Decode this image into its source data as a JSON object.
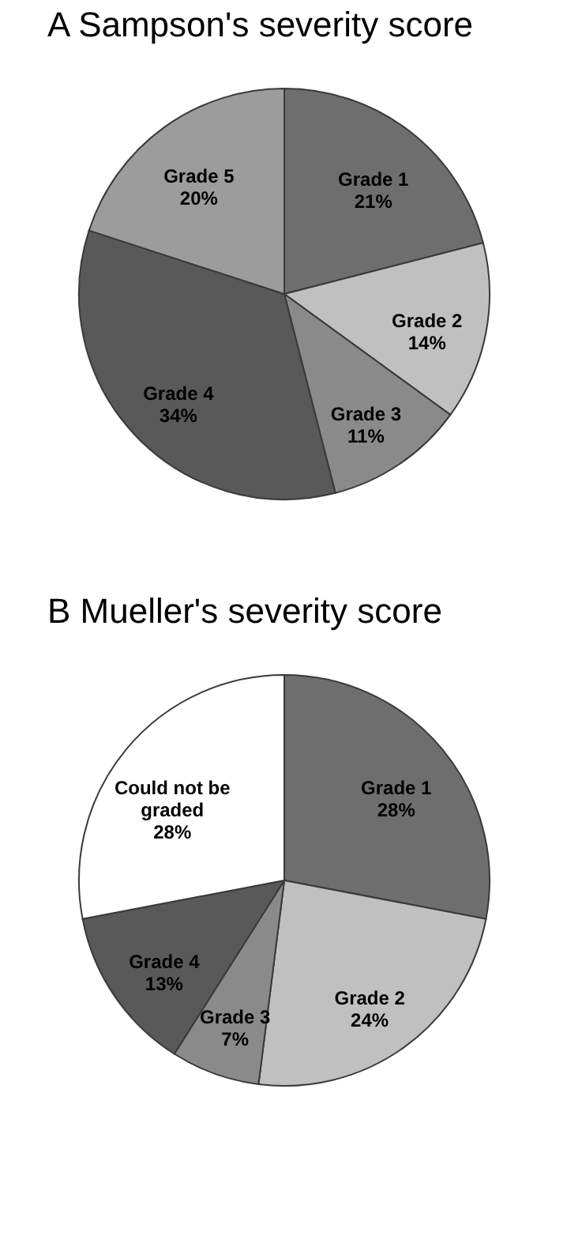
{
  "chart_data": [
    {
      "type": "pie",
      "title": "A  Sampson's severity score",
      "categories": [
        "Grade 1",
        "Grade 2",
        "Grade 3",
        "Grade 4",
        "Grade 5"
      ],
      "values": [
        21,
        14,
        11,
        34,
        20
      ],
      "colors": [
        "#6e6e6e",
        "#c0c0c0",
        "#8a8a8a",
        "#595959",
        "#9c9c9c"
      ],
      "value_labels": [
        "21%",
        "14%",
        "11%",
        "34%",
        "20%"
      ]
    },
    {
      "type": "pie",
      "title": "B   Mueller's severity score",
      "categories": [
        "Grade 1",
        "Grade 2",
        "Grade 3",
        "Grade 4",
        "Could not be graded"
      ],
      "values": [
        28,
        24,
        7,
        13,
        28
      ],
      "colors": [
        "#6e6e6e",
        "#c0c0c0",
        "#8a8a8a",
        "#595959",
        "#ffffff"
      ],
      "value_labels": [
        "28%",
        "24%",
        "7%",
        "13%",
        "28%"
      ]
    }
  ]
}
